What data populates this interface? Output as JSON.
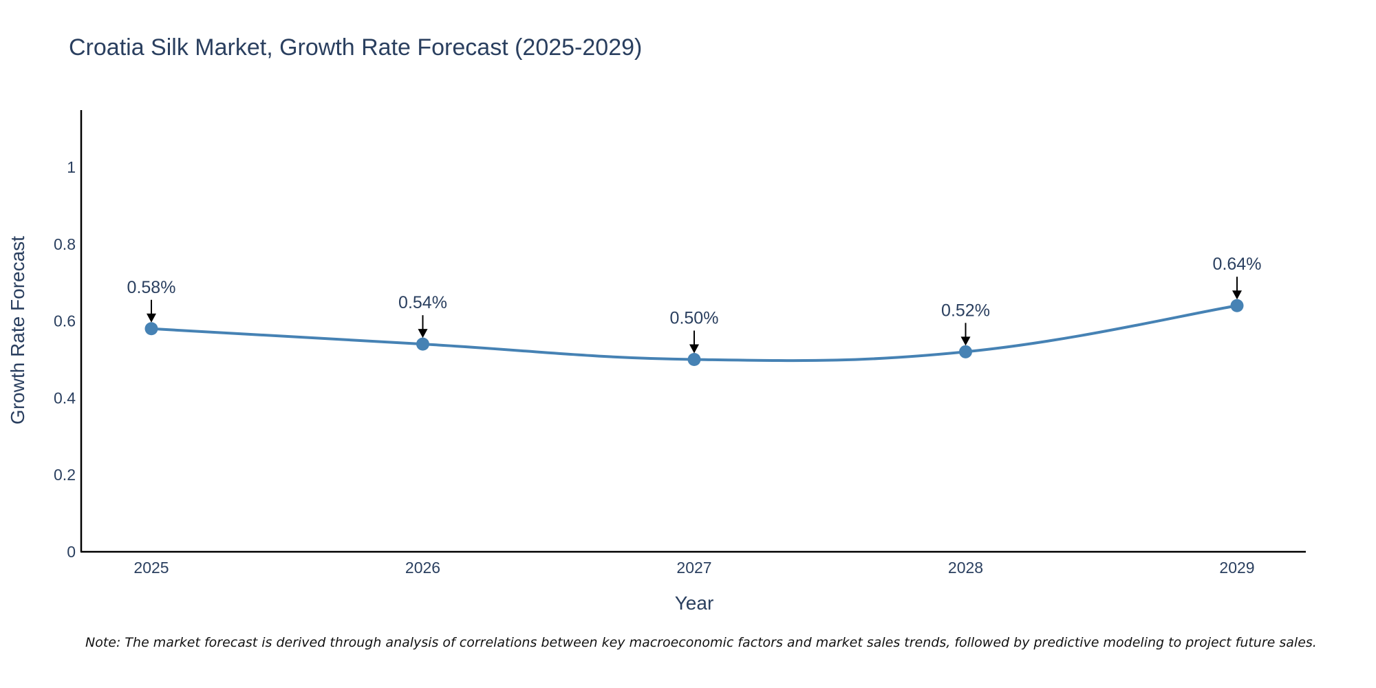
{
  "chart_data": {
    "type": "line",
    "title": "Croatia Silk Market, Growth Rate Forecast (2025-2029)",
    "xlabel": "Year",
    "ylabel": "Growth Rate Forecast",
    "categories": [
      "2025",
      "2026",
      "2027",
      "2028",
      "2029"
    ],
    "series": [
      {
        "name": "Growth Rate Forecast",
        "values": [
          0.58,
          0.54,
          0.5,
          0.52,
          0.64
        ]
      }
    ],
    "data_labels": [
      "0.58%",
      "0.54%",
      "0.50%",
      "0.52%",
      "0.64%"
    ],
    "yticks": [
      0,
      0.2,
      0.4,
      0.6,
      0.8,
      1
    ],
    "ytick_labels": [
      "0",
      "0.2",
      "0.4",
      "0.6",
      "0.8",
      "1"
    ],
    "ylim": [
      0,
      1.15
    ],
    "line_shape": "spline",
    "grid": false,
    "legend": "none",
    "note": "Note: The market forecast is derived through analysis of correlations between key macroeconomic factors and market sales trends, followed by predictive modeling to project future sales.",
    "colors": {
      "line": "#4682b4",
      "marker": "#4682b4",
      "text": "#2a3f5f",
      "axis": "#000000",
      "arrow": "#000000"
    }
  }
}
